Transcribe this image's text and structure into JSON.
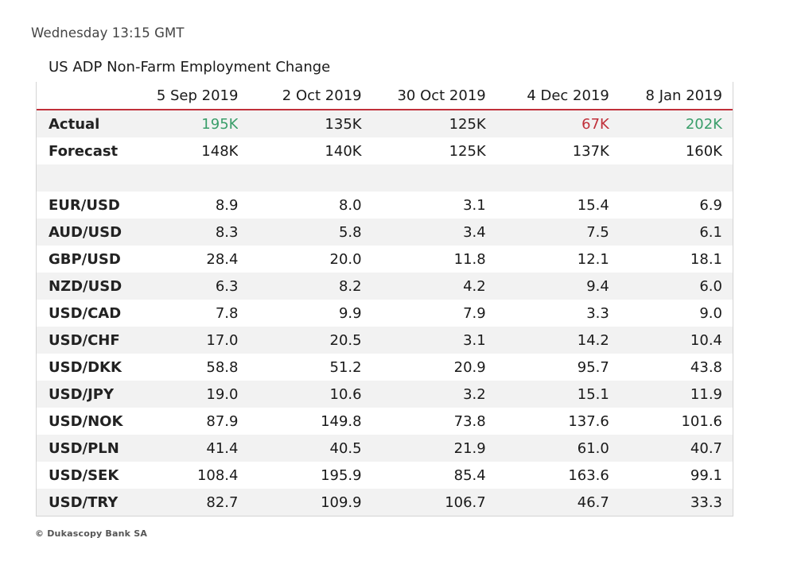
{
  "timestamp": "Wednesday 13:15 GMT",
  "table": {
    "title": "US ADP Non-Farm Employment Change",
    "headers": [
      "",
      "5 Sep 2019",
      "2 Oct 2019",
      "30 Oct 2019",
      "4 Dec 2019",
      "8 Jan 2019"
    ],
    "actual": {
      "label": "Actual",
      "values": [
        "195K",
        "135K",
        "125K",
        "67K",
        "202K"
      ],
      "colors": [
        "#3a9e6a",
        "",
        "",
        "#c0303a",
        "#3a9e6a"
      ]
    },
    "forecast": {
      "label": "Forecast",
      "values": [
        "148K",
        "140K",
        "125K",
        "137K",
        "160K"
      ]
    },
    "rows": [
      {
        "label": "EUR/USD",
        "values": [
          "8.9",
          "8.0",
          "3.1",
          "15.4",
          "6.9"
        ]
      },
      {
        "label": "AUD/USD",
        "values": [
          "8.3",
          "5.8",
          "3.4",
          "7.5",
          "6.1"
        ]
      },
      {
        "label": "GBP/USD",
        "values": [
          "28.4",
          "20.0",
          "11.8",
          "12.1",
          "18.1"
        ]
      },
      {
        "label": "NZD/USD",
        "values": [
          "6.3",
          "8.2",
          "4.2",
          "9.4",
          "6.0"
        ]
      },
      {
        "label": "USD/CAD",
        "values": [
          "7.8",
          "9.9",
          "7.9",
          "3.3",
          "9.0"
        ]
      },
      {
        "label": "USD/CHF",
        "values": [
          "17.0",
          "20.5",
          "3.1",
          "14.2",
          "10.4"
        ]
      },
      {
        "label": "USD/DKK",
        "values": [
          "58.8",
          "51.2",
          "20.9",
          "95.7",
          "43.8"
        ]
      },
      {
        "label": "USD/JPY",
        "values": [
          "19.0",
          "10.6",
          "3.2",
          "15.1",
          "11.9"
        ]
      },
      {
        "label": "USD/NOK",
        "values": [
          "87.9",
          "149.8",
          "73.8",
          "137.6",
          "101.6"
        ]
      },
      {
        "label": "USD/PLN",
        "values": [
          "41.4",
          "40.5",
          "21.9",
          "61.0",
          "40.7"
        ]
      },
      {
        "label": "USD/SEK",
        "values": [
          "108.4",
          "195.9",
          "85.4",
          "163.6",
          "99.1"
        ]
      },
      {
        "label": "USD/TRY",
        "values": [
          "82.7",
          "109.9",
          "106.7",
          "46.7",
          "33.3"
        ]
      }
    ]
  },
  "footer": "© Dukascopy Bank SA"
}
